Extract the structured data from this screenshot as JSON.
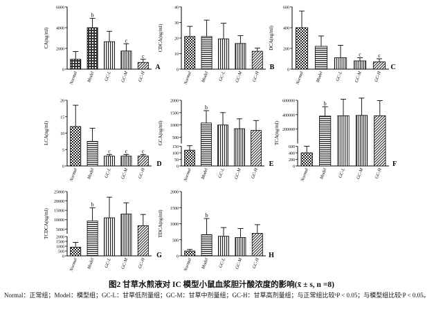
{
  "caption": "图2  甘草水煎液对 IC 模型小鼠血浆胆汁酸浓度的影响(x̄ ± s, n =8)",
  "note": "Normal：正常组；Model：模型组；GC-L：甘草低剂量组；GC-M：甘草中剂量组；GC-H：甘草高剂量组；与正常组比较ᵇP < 0.05；与模型组比较ᶜP < 0.05。",
  "chart_data": [
    {
      "type": "bar",
      "panel_label": "A",
      "ylabel": "CA(ng/ml)",
      "ylim": [
        0,
        6000
      ],
      "yticks": [
        "0",
        "2000",
        "4000",
        "6000"
      ],
      "categories": [
        "Normal",
        "Model",
        "GC-L",
        "GC-M",
        "GC-H"
      ],
      "values": [
        950,
        4000,
        2650,
        1750,
        650
      ],
      "errors": [
        750,
        900,
        1000,
        700,
        300
      ],
      "marks": [
        "",
        "b",
        "",
        "c",
        "c"
      ]
    },
    {
      "type": "bar",
      "panel_label": "B",
      "ylabel": "CDCA(ng/ml)",
      "ylim": [
        0,
        40
      ],
      "yticks": [
        "0",
        "10",
        "20",
        "30",
        "40"
      ],
      "categories": [
        "Normal",
        "Model",
        "GC-L",
        "GC-M",
        "GC-H"
      ],
      "values": [
        21,
        21,
        19.5,
        16.5,
        11.5
      ],
      "errors": [
        6.5,
        10.5,
        10,
        5,
        2
      ],
      "marks": [
        "",
        "",
        "",
        "",
        ""
      ]
    },
    {
      "type": "bar",
      "panel_label": "C",
      "ylabel": "DCA(ng/ml)",
      "ylim": [
        0,
        600
      ],
      "yticks": [
        "0",
        "200",
        "400",
        "600"
      ],
      "categories": [
        "Normal",
        "Model",
        "GC-L",
        "GC-M",
        "GC-H"
      ],
      "values": [
        400,
        220,
        110,
        80,
        70
      ],
      "errors": [
        160,
        100,
        120,
        30,
        30
      ],
      "marks": [
        "",
        "",
        "",
        "c",
        "c"
      ]
    },
    {
      "type": "bar",
      "panel_label": "D",
      "ylabel": "LCA(ng/ml)",
      "ylim": [
        0,
        20
      ],
      "yticks": [
        "0",
        "5",
        "10",
        "15",
        "20"
      ],
      "categories": [
        "Normal",
        "Model",
        "GC-L",
        "GC-M",
        "GC-H"
      ],
      "values": [
        12,
        7.5,
        3,
        3,
        3
      ],
      "errors": [
        6.5,
        4,
        0.5,
        0.5,
        0.5
      ],
      "marks": [
        "",
        "",
        "c",
        "c",
        "c"
      ]
    },
    {
      "type": "bar",
      "panel_label": "E",
      "ylabel": "GCA(ng/ml)",
      "ylim": [
        0,
        2000
      ],
      "yticks": [
        "0",
        "50",
        "100",
        "150",
        "500",
        "1000",
        "1500",
        "2000"
      ],
      "broken_axis": true,
      "categories": [
        "Normal",
        "Model",
        "GC-L",
        "GC-M",
        "GC-H"
      ],
      "values": [
        120,
        1080,
        1000,
        850,
        780
      ],
      "errors": [
        40,
        500,
        500,
        400,
        400
      ],
      "marks": [
        "",
        "b",
        "",
        "",
        ""
      ]
    },
    {
      "type": "bar",
      "panel_label": "F",
      "ylabel": "TCA(ng/ml)",
      "ylim": [
        0,
        600000
      ],
      "yticks": [
        "0",
        "200",
        "400",
        "600",
        "200000",
        "400000",
        "600000"
      ],
      "broken_axis": true,
      "categories": [
        "Normal",
        "Model",
        "GC-L",
        "GC-M",
        "GC-H"
      ],
      "values": [
        400,
        380000,
        385000,
        390000,
        385000
      ],
      "errors": [
        200,
        130000,
        230000,
        240000,
        210000
      ],
      "marks": [
        "",
        "b",
        "",
        "",
        ""
      ]
    },
    {
      "type": "bar",
      "panel_label": "G",
      "ylabel": "TCDCA(ng/ml)",
      "ylim": [
        0,
        25000
      ],
      "yticks": [
        "0",
        "500",
        "1000",
        "1500",
        "2000",
        "5000",
        "10000",
        "15000",
        "20000",
        "25000"
      ],
      "broken_axis": true,
      "categories": [
        "Normal",
        "Model",
        "GC-L",
        "GC-M",
        "GC-H"
      ],
      "values": [
        900,
        9300,
        11000,
        13000,
        6800
      ],
      "errors": [
        500,
        7000,
        11000,
        6000,
        6000
      ],
      "marks": [
        "",
        "b",
        "",
        "",
        ""
      ]
    },
    {
      "type": "bar",
      "panel_label": "H",
      "ylabel": "TDCA(ng/ml)",
      "ylim": [
        0,
        2000
      ],
      "yticks": [
        "0",
        "500",
        "1000",
        "1500",
        "2000"
      ],
      "categories": [
        "Normal",
        "Model",
        "GC-L",
        "GC-M",
        "GC-H"
      ],
      "values": [
        150,
        660,
        610,
        570,
        700
      ],
      "errors": [
        50,
        500,
        270,
        280,
        270
      ],
      "marks": [
        "",
        "b",
        "",
        "",
        ""
      ]
    }
  ]
}
